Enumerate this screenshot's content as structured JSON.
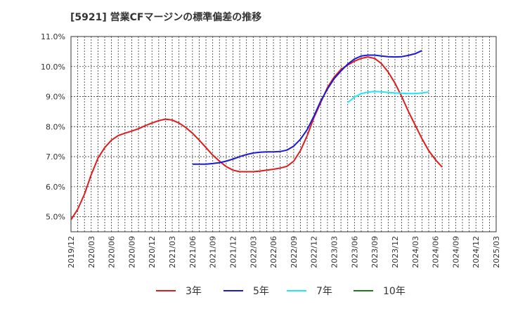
{
  "chart_data": {
    "type": "line",
    "title": "[5921]  営業CFマージンの標準偏差の推移",
    "ylim": [
      4.5,
      11.0
    ],
    "y_ticks": [
      "5.0%",
      "6.0%",
      "7.0%",
      "8.0%",
      "9.0%",
      "10.0%",
      "11.0%"
    ],
    "x_ticks": [
      "2019/12",
      "2020/03",
      "2020/06",
      "2020/09",
      "2020/12",
      "2021/03",
      "2021/06",
      "2021/09",
      "2021/12",
      "2022/03",
      "2022/06",
      "2022/09",
      "2022/12",
      "2023/03",
      "2023/06",
      "2023/09",
      "2023/12",
      "2024/03",
      "2024/06",
      "2024/09",
      "2024/12",
      "2025/03"
    ],
    "grid": true,
    "legend_position": "bottom",
    "series": [
      {
        "name": "3年",
        "color": "#e01b1b",
        "points": [
          [
            "2019/12",
            4.9
          ],
          [
            "2020/01",
            5.25
          ],
          [
            "2020/02",
            5.75
          ],
          [
            "2020/03",
            6.4
          ],
          [
            "2020/04",
            6.95
          ],
          [
            "2020/05",
            7.3
          ],
          [
            "2020/06",
            7.55
          ],
          [
            "2020/07",
            7.7
          ],
          [
            "2020/08",
            7.78
          ],
          [
            "2020/09",
            7.85
          ],
          [
            "2020/10",
            7.93
          ],
          [
            "2020/11",
            8.03
          ],
          [
            "2020/12",
            8.12
          ],
          [
            "2021/01",
            8.2
          ],
          [
            "2021/02",
            8.25
          ],
          [
            "2021/03",
            8.22
          ],
          [
            "2021/04",
            8.12
          ],
          [
            "2021/05",
            7.97
          ],
          [
            "2021/06",
            7.78
          ],
          [
            "2021/07",
            7.55
          ],
          [
            "2021/08",
            7.3
          ],
          [
            "2021/09",
            7.05
          ],
          [
            "2021/10",
            6.85
          ],
          [
            "2021/11",
            6.67
          ],
          [
            "2021/12",
            6.55
          ],
          [
            "2022/01",
            6.5
          ],
          [
            "2022/02",
            6.5
          ],
          [
            "2022/03",
            6.5
          ],
          [
            "2022/04",
            6.52
          ],
          [
            "2022/05",
            6.55
          ],
          [
            "2022/06",
            6.58
          ],
          [
            "2022/07",
            6.62
          ],
          [
            "2022/08",
            6.68
          ],
          [
            "2022/09",
            6.85
          ],
          [
            "2022/10",
            7.2
          ],
          [
            "2022/11",
            7.7
          ],
          [
            "2022/12",
            8.3
          ],
          [
            "2023/01",
            8.8
          ],
          [
            "2023/02",
            9.3
          ],
          [
            "2023/03",
            9.65
          ],
          [
            "2023/04",
            9.9
          ],
          [
            "2023/05",
            10.05
          ],
          [
            "2023/06",
            10.18
          ],
          [
            "2023/07",
            10.27
          ],
          [
            "2023/08",
            10.32
          ],
          [
            "2023/09",
            10.27
          ],
          [
            "2023/10",
            10.1
          ],
          [
            "2023/11",
            9.82
          ],
          [
            "2023/12",
            9.45
          ],
          [
            "2024/01",
            9.0
          ],
          [
            "2024/02",
            8.5
          ],
          [
            "2024/03",
            8.05
          ],
          [
            "2024/04",
            7.6
          ],
          [
            "2024/05",
            7.2
          ],
          [
            "2024/06",
            6.9
          ],
          [
            "2024/07",
            6.65
          ]
        ]
      },
      {
        "name": "5年",
        "color": "#1a1adb",
        "points": [
          [
            "2021/06",
            6.75
          ],
          [
            "2021/07",
            6.75
          ],
          [
            "2021/08",
            6.75
          ],
          [
            "2021/09",
            6.77
          ],
          [
            "2021/10",
            6.8
          ],
          [
            "2021/11",
            6.85
          ],
          [
            "2021/12",
            6.92
          ],
          [
            "2022/01",
            7.0
          ],
          [
            "2022/02",
            7.07
          ],
          [
            "2022/03",
            7.12
          ],
          [
            "2022/04",
            7.15
          ],
          [
            "2022/05",
            7.16
          ],
          [
            "2022/06",
            7.16
          ],
          [
            "2022/07",
            7.17
          ],
          [
            "2022/08",
            7.22
          ],
          [
            "2022/09",
            7.35
          ],
          [
            "2022/10",
            7.58
          ],
          [
            "2022/11",
            7.9
          ],
          [
            "2022/12",
            8.35
          ],
          [
            "2023/01",
            8.85
          ],
          [
            "2023/02",
            9.25
          ],
          [
            "2023/03",
            9.6
          ],
          [
            "2023/04",
            9.85
          ],
          [
            "2023/05",
            10.08
          ],
          [
            "2023/06",
            10.25
          ],
          [
            "2023/07",
            10.35
          ],
          [
            "2023/08",
            10.38
          ],
          [
            "2023/09",
            10.38
          ],
          [
            "2023/10",
            10.35
          ],
          [
            "2023/11",
            10.33
          ],
          [
            "2023/12",
            10.32
          ],
          [
            "2024/01",
            10.33
          ],
          [
            "2024/02",
            10.37
          ],
          [
            "2024/03",
            10.43
          ],
          [
            "2024/04",
            10.53
          ]
        ]
      },
      {
        "name": "7年",
        "color": "#22e6f0",
        "points": [
          [
            "2023/05",
            8.8
          ],
          [
            "2023/06",
            8.98
          ],
          [
            "2023/07",
            9.1
          ],
          [
            "2023/08",
            9.15
          ],
          [
            "2023/09",
            9.17
          ],
          [
            "2023/10",
            9.16
          ],
          [
            "2023/11",
            9.14
          ],
          [
            "2023/12",
            9.12
          ],
          [
            "2024/01",
            9.11
          ],
          [
            "2024/02",
            9.1
          ],
          [
            "2024/03",
            9.1
          ],
          [
            "2024/04",
            9.12
          ],
          [
            "2024/05",
            9.15
          ]
        ]
      },
      {
        "name": "10年",
        "color": "#1a7a1a",
        "points": []
      }
    ]
  }
}
